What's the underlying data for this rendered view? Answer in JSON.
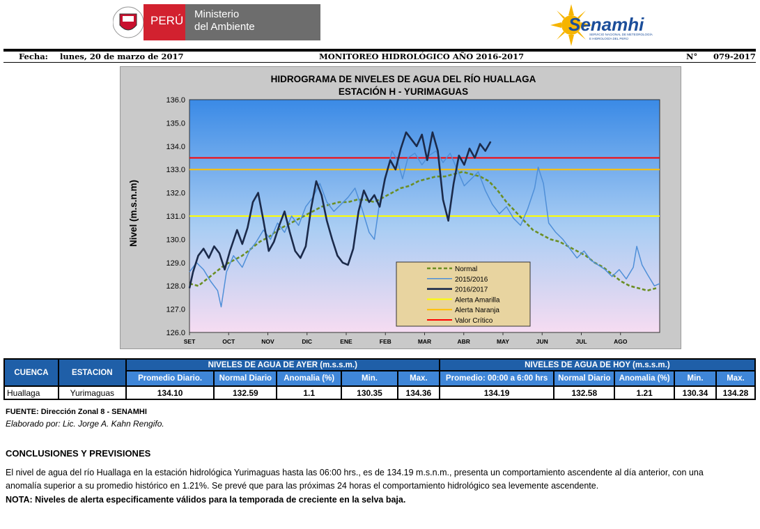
{
  "header": {
    "peru_label": "PERÚ",
    "ministry_line1": "Ministerio",
    "ministry_line2": "del Ambiente",
    "senamhi_name": "Senamhi",
    "senamhi_sub1": "SERVICIO NACIONAL DE METEOROLOGÍA",
    "senamhi_sub2": "E HIDROLOGÍA DEL PERÚ",
    "fecha_label": "Fecha:",
    "fecha_value": "lunes, 20 de marzo de 2017",
    "monitoreo": "MONITOREO HIDROLÓGICO AÑO  2016-2017",
    "num_label": "N°",
    "num_value": "079-2017"
  },
  "colors": {
    "normal": "#6b8e23",
    "s2015": "#4f8fd8",
    "s2016": "#1b2a4a",
    "amarilla": "#ffff00",
    "naranja": "#ffc000",
    "critico": "#ff0000",
    "header_blue": "#1f5fa8"
  },
  "chart_data": {
    "type": "line",
    "title": "HIDROGRAMA DE NIVELES DE AGUA DEL RÍO HUALLAGA",
    "subtitle": "ESTACIÓN H - YURIMAGUAS",
    "ylabel": "Nivel (m.s.n.m)",
    "xlabel": "",
    "ylim": [
      126.0,
      136.0
    ],
    "yticks": [
      "126.0",
      "127.0",
      "128.0",
      "129.0",
      "130.0",
      "131.0",
      "132.0",
      "133.0",
      "134.0",
      "135.0",
      "136.0"
    ],
    "months": [
      "SET",
      "OCT",
      "NOV",
      "DIC",
      "ENE",
      "FEB",
      "MAR",
      "ABR",
      "MAY",
      "JUN",
      "JUL",
      "AGO"
    ],
    "legend_position": "bottom-right",
    "thresholds": [
      {
        "name": "Alerta Amarilla",
        "value": 131.0,
        "color": "#ffff00"
      },
      {
        "name": "Alerta Naranja",
        "value": 133.0,
        "color": "#ffc000"
      },
      {
        "name": "Valor Crítico",
        "value": 133.5,
        "color": "#ff0000"
      }
    ],
    "series": [
      {
        "name": "Normal",
        "style": "dashed",
        "color": "#6b8e23",
        "points": [
          [
            0,
            128.1
          ],
          [
            5,
            128.0
          ],
          [
            10,
            128.3
          ],
          [
            15,
            128.6
          ],
          [
            20,
            128.9
          ],
          [
            25,
            129.1
          ],
          [
            30,
            129.3
          ],
          [
            35,
            129.6
          ],
          [
            40,
            129.9
          ],
          [
            45,
            130.1
          ],
          [
            50,
            130.4
          ],
          [
            55,
            130.6
          ],
          [
            60,
            130.8
          ],
          [
            65,
            131.0
          ],
          [
            70,
            131.2
          ],
          [
            75,
            131.4
          ],
          [
            80,
            131.5
          ],
          [
            85,
            131.6
          ],
          [
            90,
            131.6
          ],
          [
            95,
            131.7
          ],
          [
            100,
            131.7
          ],
          [
            105,
            131.6
          ],
          [
            110,
            131.8
          ],
          [
            115,
            132.0
          ],
          [
            120,
            132.2
          ],
          [
            125,
            132.3
          ],
          [
            130,
            132.5
          ],
          [
            135,
            132.6
          ],
          [
            140,
            132.7
          ],
          [
            145,
            132.7
          ],
          [
            150,
            132.8
          ],
          [
            155,
            132.9
          ],
          [
            160,
            132.8
          ],
          [
            165,
            132.7
          ],
          [
            170,
            132.5
          ],
          [
            175,
            132.1
          ],
          [
            180,
            131.6
          ],
          [
            185,
            131.2
          ],
          [
            190,
            130.8
          ],
          [
            195,
            130.4
          ],
          [
            200,
            130.2
          ],
          [
            205,
            130.0
          ],
          [
            210,
            129.9
          ],
          [
            215,
            129.7
          ],
          [
            220,
            129.5
          ],
          [
            225,
            129.3
          ],
          [
            230,
            129.0
          ],
          [
            235,
            128.8
          ],
          [
            240,
            128.5
          ],
          [
            245,
            128.2
          ],
          [
            250,
            128.0
          ],
          [
            255,
            127.9
          ],
          [
            260,
            127.8
          ],
          [
            265,
            127.9
          ]
        ]
      },
      {
        "name": "2015/2016",
        "style": "solid",
        "color": "#4f8fd8",
        "points": [
          [
            0,
            128.6
          ],
          [
            4,
            129.0
          ],
          [
            8,
            128.7
          ],
          [
            12,
            128.2
          ],
          [
            16,
            127.8
          ],
          [
            18,
            127.1
          ],
          [
            21,
            128.6
          ],
          [
            25,
            129.3
          ],
          [
            30,
            128.8
          ],
          [
            34,
            129.5
          ],
          [
            38,
            129.9
          ],
          [
            42,
            130.4
          ],
          [
            46,
            130.0
          ],
          [
            50,
            130.7
          ],
          [
            54,
            130.3
          ],
          [
            58,
            131.0
          ],
          [
            62,
            130.6
          ],
          [
            66,
            131.4
          ],
          [
            70,
            131.8
          ],
          [
            74,
            132.4
          ],
          [
            78,
            131.6
          ],
          [
            82,
            131.2
          ],
          [
            86,
            131.5
          ],
          [
            90,
            131.8
          ],
          [
            94,
            132.2
          ],
          [
            98,
            131.3
          ],
          [
            102,
            130.3
          ],
          [
            105,
            130.0
          ],
          [
            108,
            131.6
          ],
          [
            112,
            132.8
          ],
          [
            115,
            133.8
          ],
          [
            118,
            133.4
          ],
          [
            121,
            132.6
          ],
          [
            124,
            133.5
          ],
          [
            128,
            133.7
          ],
          [
            132,
            133.2
          ],
          [
            136,
            133.6
          ],
          [
            140,
            133.8
          ],
          [
            144,
            133.3
          ],
          [
            148,
            133.7
          ],
          [
            152,
            133.0
          ],
          [
            156,
            132.3
          ],
          [
            160,
            132.6
          ],
          [
            164,
            132.9
          ],
          [
            168,
            132.1
          ],
          [
            172,
            131.5
          ],
          [
            176,
            131.1
          ],
          [
            180,
            131.4
          ],
          [
            184,
            130.9
          ],
          [
            188,
            130.6
          ],
          [
            192,
            131.3
          ],
          [
            196,
            132.2
          ],
          [
            198,
            133.1
          ],
          [
            201,
            132.4
          ],
          [
            204,
            130.7
          ],
          [
            208,
            130.3
          ],
          [
            212,
            130.0
          ],
          [
            216,
            129.6
          ],
          [
            220,
            129.2
          ],
          [
            224,
            129.5
          ],
          [
            228,
            129.1
          ],
          [
            232,
            128.9
          ],
          [
            236,
            128.7
          ],
          [
            240,
            128.4
          ],
          [
            244,
            128.7
          ],
          [
            248,
            128.3
          ],
          [
            252,
            128.8
          ],
          [
            254,
            129.7
          ],
          [
            257,
            128.9
          ],
          [
            260,
            128.5
          ],
          [
            264,
            128.0
          ],
          [
            267,
            128.1
          ]
        ]
      },
      {
        "name": "2016/2017",
        "style": "solid",
        "color": "#1b2a4a",
        "points": [
          [
            0,
            127.9
          ],
          [
            2,
            128.6
          ],
          [
            5,
            129.3
          ],
          [
            8,
            129.6
          ],
          [
            11,
            129.2
          ],
          [
            14,
            129.7
          ],
          [
            17,
            129.4
          ],
          [
            20,
            128.7
          ],
          [
            23,
            129.5
          ],
          [
            27,
            130.4
          ],
          [
            30,
            129.8
          ],
          [
            33,
            130.5
          ],
          [
            36,
            131.6
          ],
          [
            39,
            132.0
          ],
          [
            42,
            130.8
          ],
          [
            45,
            129.5
          ],
          [
            48,
            129.9
          ],
          [
            51,
            130.6
          ],
          [
            54,
            131.2
          ],
          [
            57,
            130.3
          ],
          [
            60,
            129.5
          ],
          [
            63,
            129.2
          ],
          [
            66,
            129.7
          ],
          [
            69,
            131.3
          ],
          [
            72,
            132.5
          ],
          [
            75,
            131.9
          ],
          [
            78,
            130.8
          ],
          [
            81,
            130.0
          ],
          [
            84,
            129.3
          ],
          [
            87,
            129.0
          ],
          [
            90,
            128.9
          ],
          [
            93,
            129.6
          ],
          [
            96,
            131.2
          ],
          [
            99,
            132.1
          ],
          [
            102,
            131.6
          ],
          [
            105,
            131.9
          ],
          [
            108,
            131.4
          ],
          [
            111,
            132.6
          ],
          [
            114,
            133.4
          ],
          [
            117,
            133.0
          ],
          [
            120,
            133.9
          ],
          [
            123,
            134.6
          ],
          [
            126,
            134.3
          ],
          [
            129,
            134.0
          ],
          [
            132,
            134.5
          ],
          [
            135,
            133.4
          ],
          [
            138,
            134.6
          ],
          [
            141,
            133.8
          ],
          [
            144,
            131.7
          ],
          [
            147,
            130.8
          ],
          [
            150,
            132.4
          ],
          [
            153,
            133.6
          ],
          [
            156,
            133.2
          ],
          [
            159,
            133.9
          ],
          [
            162,
            133.5
          ],
          [
            165,
            134.1
          ],
          [
            168,
            133.8
          ],
          [
            171,
            134.2
          ]
        ]
      }
    ]
  },
  "table": {
    "h_cuenca": "CUENCA",
    "h_estacion": "ESTACION",
    "h_ayer": "NIVELES DE AGUA DE AYER (m.s.s.m.)",
    "h_hoy": "NIVELES DE AGUA DE HOY (m.s.s.m.)",
    "ayer_cols": [
      "Promedio  Diario.",
      "Normal Diario",
      "Anomalia (%)",
      "Min.",
      "Max."
    ],
    "hoy_cols": [
      "Promedio: 00:00 a 6:00 hrs",
      "Normal Diario",
      "Anomalia (%)",
      "Min.",
      "Max."
    ],
    "row": {
      "cuenca": "Huallaga",
      "estacion": "Yurimaguas",
      "ayer": [
        "134.10",
        "132.59",
        "1.1",
        "130.35",
        "134.36"
      ],
      "hoy": [
        "134.19",
        "132.58",
        "1.21",
        "130.34",
        "134.28"
      ]
    }
  },
  "fuente": "FUENTE: Dirección Zonal 8 - SENAMHI",
  "elaborado": "Elaborado por: Lic. Jorge A. Kahn Rengifo.",
  "conclusiones_title": "CONCLUSIONES Y PREVISIONES",
  "conclusion_line1": "El nivel de agua del río Huallaga  en la estación hidrológica Yurimaguas hasta las 06:00 hrs., es de 134.19 m.s.n.m., presenta  un comportamiento ascendente al día anterior, con una",
  "conclusion_line2": "anomalía superior  a su promedio  histórico  en 1.21%.  Se prevé que para las próximas 24 horas el comportamiento hidrológico sea levemente ascendente.",
  "nota": "NOTA: Niveles de alerta especificamente válidos para la temporada de creciente en la selva baja."
}
